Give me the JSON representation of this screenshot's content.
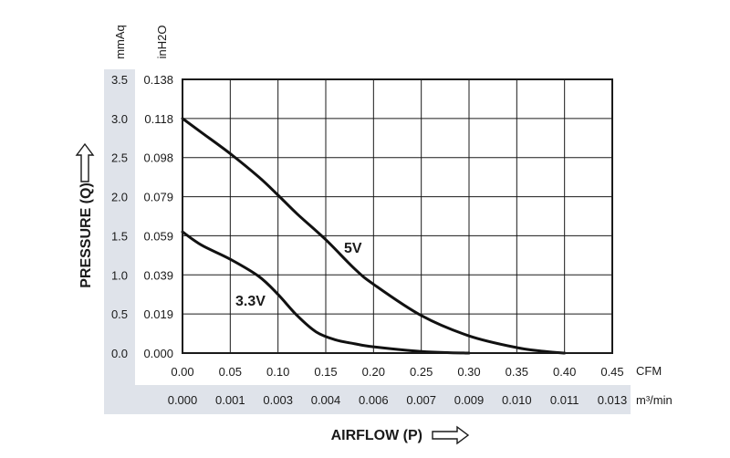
{
  "chart_data": {
    "type": "line",
    "xlabel": "AIRFLOW (P)",
    "ylabel": "PRESSURE (Q)",
    "primary_x_unit": "CFM",
    "secondary_x_unit": "m³/min",
    "primary_y_unit": "mmAq",
    "secondary_y_unit": "inH2O",
    "xlim": [
      0,
      0.45
    ],
    "ylim": [
      0,
      3.5
    ],
    "x_ticks": [
      "0.00",
      "0.05",
      "0.10",
      "0.15",
      "0.20",
      "0.25",
      "0.30",
      "0.35",
      "0.40",
      "0.45"
    ],
    "x_ticks_secondary": [
      "0.000",
      "0.001",
      "0.003",
      "0.004",
      "0.006",
      "0.007",
      "0.009",
      "0.010",
      "0.011",
      "0.013"
    ],
    "y_ticks": [
      "0.0",
      "0.5",
      "1.0",
      "1.5",
      "2.0",
      "2.5",
      "3.0",
      "3.5"
    ],
    "y_ticks_secondary": [
      "0.000",
      "0.019",
      "0.039",
      "0.059",
      "0.079",
      "0.098",
      "0.118",
      "0.138"
    ],
    "grid": true,
    "series": [
      {
        "name": "5V",
        "x": [
          0,
          0.02,
          0.05,
          0.08,
          0.1,
          0.12,
          0.15,
          0.18,
          0.2,
          0.25,
          0.3,
          0.35,
          0.38,
          0.4
        ],
        "y": [
          3.0,
          2.82,
          2.55,
          2.25,
          2.02,
          1.78,
          1.45,
          1.08,
          0.88,
          0.48,
          0.22,
          0.07,
          0.02,
          0.0
        ]
      },
      {
        "name": "3.3V",
        "x": [
          0,
          0.02,
          0.05,
          0.08,
          0.1,
          0.12,
          0.14,
          0.16,
          0.18,
          0.2,
          0.25,
          0.28,
          0.3
        ],
        "y": [
          1.55,
          1.38,
          1.2,
          0.98,
          0.75,
          0.48,
          0.27,
          0.17,
          0.12,
          0.08,
          0.02,
          0.005,
          0.0
        ]
      }
    ]
  }
}
